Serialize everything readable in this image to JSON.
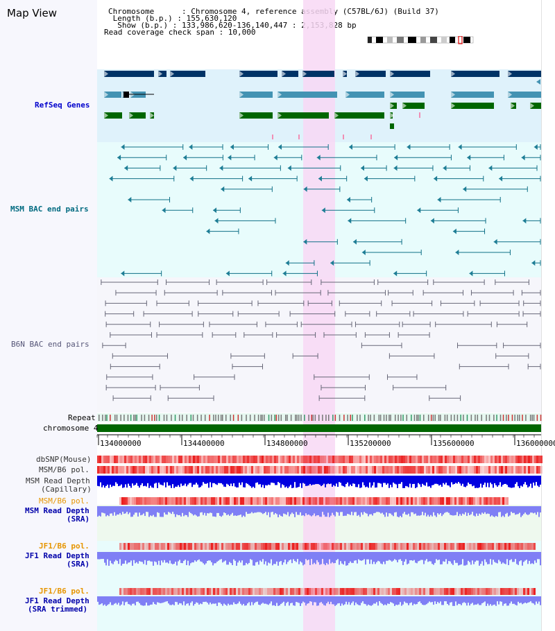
{
  "title": "Map View",
  "info": {
    "chromosome": "Chromosome      : Chromosome 4, reference assembly (C57BL/6J) (Build 37)",
    "length": " Length (b.p.) : 155,630,120",
    "show": "  Show (b.p.) : 133,986,620-136,140,447 : 2,153,828 bp",
    "coverage": "Read coverage check span : 10,000"
  },
  "tracks": {
    "refseq": "RefSeq Genes",
    "msm_bac": "MSM BAC end pairs",
    "b6n_bac": "B6N BAC end pairs",
    "repeat": "Repeat",
    "chromosome": "chromosome 4",
    "dbsnp": "dbSNP(Mouse)",
    "msm_b6_pol": "MSM/B6 pol.",
    "msm_depth_cap_1": "MSM Read Depth",
    "msm_depth_cap_2": "(Capillary)",
    "msm_b6_pol_sra": "MSM/B6 pol.",
    "msm_depth_sra_1": "MSM Read Depth",
    "msm_depth_sra_2": "(SRA)",
    "jf1_b6_pol": "JF1/B6 pol.",
    "jf1_depth_1": "JF1 Read Depth",
    "jf1_depth_2": "(SRA)",
    "jf1_b6_pol_trim": "JF1/B6 pol.",
    "jf1_depth_trim_1": "JF1 Read Depth",
    "jf1_depth_trim_2": "(SRA trimmed)"
  },
  "axis": {
    "ticks": [
      "134000000",
      "134400000",
      "134800000",
      "135200000",
      "135600000",
      "136000000"
    ]
  },
  "colors": {
    "refseq_bg": "#dff2fb",
    "msm_bg": "#e8fcfc",
    "b6n_bg": "#f6f6fb",
    "highlight": "#f8d8f4",
    "msm_label": "#006a80",
    "refseq_label": "#0000cc",
    "orange_label": "#e69500",
    "dark_blue": "#003366",
    "mid_blue": "#4393b3",
    "green": "#006600",
    "chromosome": "#006600",
    "depth_blue": "#0000e0",
    "depth_light": "#7f7ff5"
  }
}
